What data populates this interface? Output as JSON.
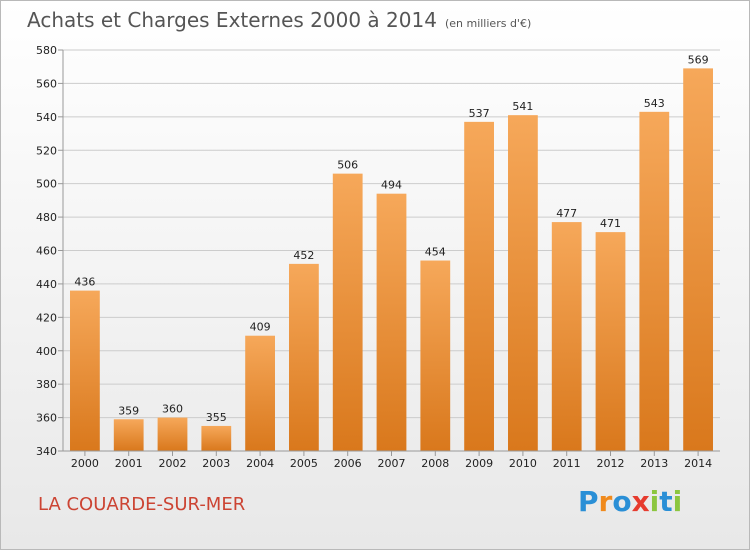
{
  "title": "Achats et Charges Externes 2000 à 2014",
  "subtitle": "(en milliers d'€)",
  "place": "LA COUARDE-SUR-MER",
  "logo": {
    "text": "Proxiti",
    "letters": [
      {
        "ch": "P",
        "color": "#2a8fd6"
      },
      {
        "ch": "r",
        "color": "#f08a1c"
      },
      {
        "ch": "o",
        "color": "#2a8fd6"
      },
      {
        "ch": "x",
        "color": "#e63b2e"
      },
      {
        "ch": "i",
        "color": "#8cc63f"
      },
      {
        "ch": "t",
        "color": "#2a8fd6"
      },
      {
        "ch": "i",
        "color": "#8cc63f"
      }
    ]
  },
  "colors": {
    "bar_light": "#f6a85a",
    "bar_dark": "#d9781c",
    "grid": "#cccccc",
    "axis": "#999999"
  },
  "chart_data": {
    "type": "bar",
    "categories": [
      "2000",
      "2001",
      "2002",
      "2003",
      "2004",
      "2005",
      "2006",
      "2007",
      "2008",
      "2009",
      "2010",
      "2011",
      "2012",
      "2013",
      "2014"
    ],
    "values": [
      436,
      359,
      360,
      355,
      409,
      452,
      506,
      494,
      454,
      537,
      541,
      477,
      471,
      543,
      569
    ],
    "ylim": [
      340,
      580
    ],
    "yticks": [
      340,
      360,
      380,
      400,
      420,
      440,
      460,
      480,
      500,
      520,
      540,
      560,
      580
    ],
    "grid": true,
    "data_labels": true
  }
}
